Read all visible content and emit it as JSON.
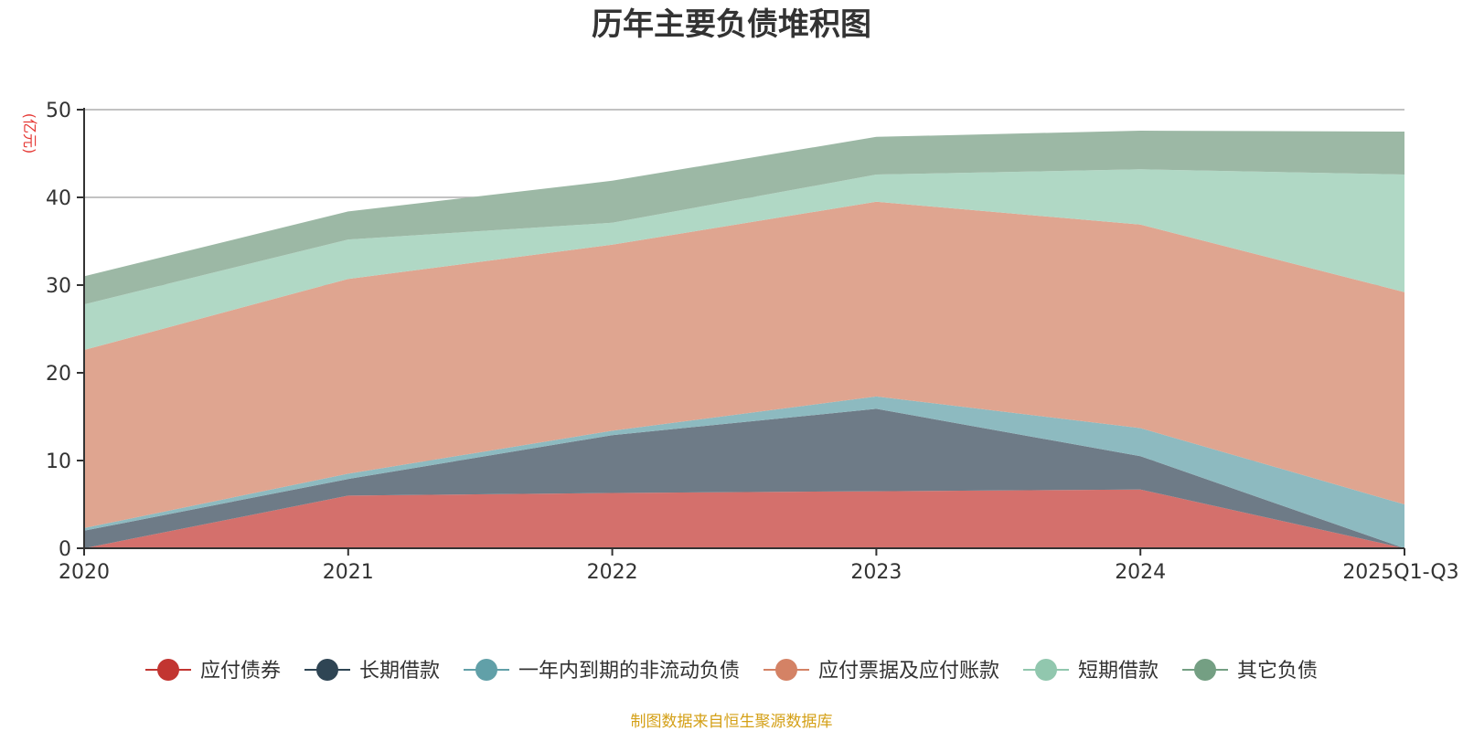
{
  "chart_data": {
    "type": "area",
    "stacked": true,
    "title": "历年主要负债堆积图",
    "ylabel": "(亿元)",
    "xlabel": "",
    "categories": [
      "2020",
      "2021",
      "2022",
      "2023",
      "2024",
      "2025Q1-Q3"
    ],
    "ylim": [
      0,
      50
    ],
    "yticks": [
      0,
      10,
      20,
      30,
      40,
      50
    ],
    "grid": true,
    "legend_position": "bottom",
    "series": [
      {
        "name": "应付债券",
        "color": "#c23531",
        "fill": "#d4706c",
        "values": [
          0,
          6.0,
          6.3,
          6.5,
          6.7,
          0
        ]
      },
      {
        "name": "长期借款",
        "color": "#2f4554",
        "fill": "#6e7b87",
        "values": [
          2.0,
          1.9,
          6.6,
          9.4,
          3.8,
          0
        ]
      },
      {
        "name": "一年内到期的非流动负债",
        "color": "#61a0a8",
        "fill": "#8dbac0",
        "values": [
          0.3,
          0.6,
          0.5,
          1.4,
          3.2,
          5.0
        ]
      },
      {
        "name": "应付票据及应付账款",
        "color": "#d48265",
        "fill": "#dfa590",
        "values": [
          20.3,
          22.2,
          21.2,
          22.2,
          23.2,
          24.2
        ]
      },
      {
        "name": "短期借款",
        "color": "#91c7ae",
        "fill": "#b0d8c5",
        "values": [
          5.2,
          4.5,
          2.5,
          3.1,
          6.3,
          13.4
        ]
      },
      {
        "name": "其它负债",
        "color": "#749f83",
        "fill": "#9cb8a5",
        "values": [
          3.2,
          3.2,
          4.8,
          4.3,
          4.4,
          4.9
        ]
      }
    ]
  },
  "source_note": "制图数据来自恒生聚源数据库"
}
